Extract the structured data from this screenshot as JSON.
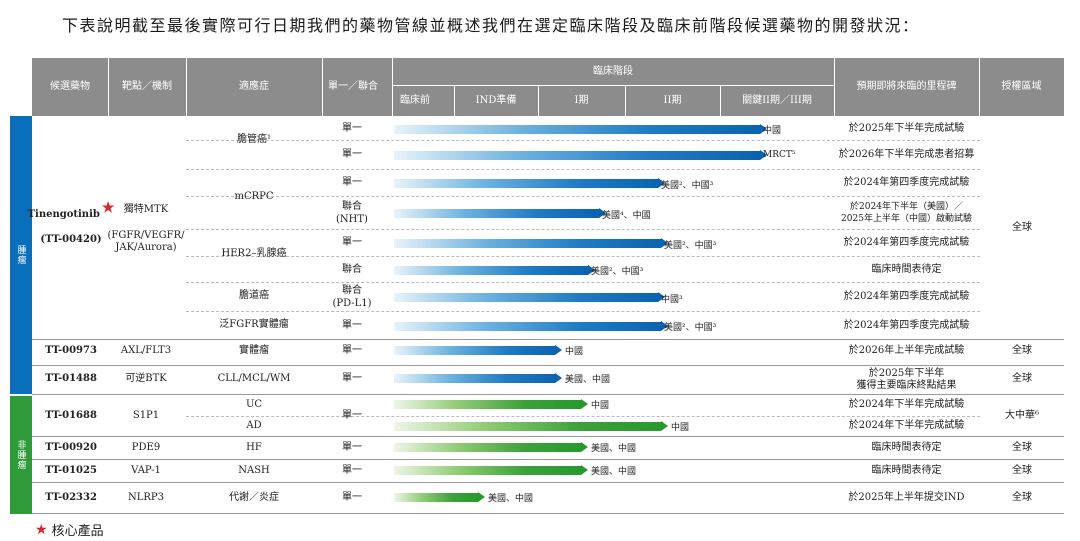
{
  "intro": "下表說明截至最後實際可行日期我們的藥物管線並概述我們在選定臨床階段及臨床前階段候選藥物的開發狀況：",
  "headers": {
    "candidate": "候選藥物",
    "target": "靶點／機制",
    "indication": "適應症",
    "mono_combo": "單一／聯合",
    "clinical_stage": "臨床階段",
    "preclinical": "臨床前",
    "ind": "IND準備",
    "phase1": "I期",
    "phase2": "II期",
    "pivotal": "關鍵II期／III期",
    "milestone": "預期即將來臨的里程碑",
    "rights": "授權區域"
  },
  "sidebar": {
    "oncology": "腫瘤",
    "non_oncology": "非腫瘤"
  },
  "colors": {
    "oncology": "#0a6fba",
    "non_oncology": "#2f9a3a",
    "header": "#8c8c8c",
    "star": "#d9262b"
  },
  "drugs": {
    "tt00420": {
      "name": "Tinengotinib",
      "code": "(TT-00420)",
      "target": "獨特MTK",
      "target_detail": "(FGFR/VEGFR/\nJAK/Aurora)",
      "rights": "全球"
    },
    "tt00973": {
      "code": "TT-00973",
      "target": "AXL/FLT3",
      "indication": "實體瘤",
      "mode": "單一",
      "bar_label": "中國",
      "milestone": "於2026年上半年完成試驗",
      "rights": "全球"
    },
    "tt01488": {
      "code": "TT-01488",
      "target": "可逆BTK",
      "indication": "CLL/MCL/WM",
      "mode": "單一",
      "bar_label": "美國、中國",
      "milestone": "於2025年下半年\n獲得主要臨床終點結果",
      "rights": "全球"
    },
    "tt01688": {
      "code": "TT-01688",
      "target": "S1P1",
      "mode": "單一",
      "rights": "大中華⁶"
    },
    "tt00920": {
      "code": "TT-00920",
      "target": "PDE9",
      "indication": "HF",
      "mode": "單一",
      "bar_label": "美國、中國",
      "milestone": "臨床時間表待定",
      "rights": "全球"
    },
    "tt01025": {
      "code": "TT-01025",
      "target": "VAP-1",
      "indication": "NASH",
      "mode": "單一",
      "bar_label": "美國、中國",
      "milestone": "臨床時間表待定",
      "rights": "全球"
    },
    "tt02332": {
      "code": "TT-02332",
      "target": "NLRP3",
      "indication": "代謝／炎症",
      "mode": "單一",
      "bar_label": "美國、中國",
      "milestone": "於2025年上半年提交IND",
      "rights": "全球"
    }
  },
  "tt00420_rows": [
    {
      "mode": "單一",
      "bar_label": "中國",
      "milestone": "於2025年下半年完成試驗",
      "progress": 1.0
    },
    {
      "mode": "單一",
      "bar_label": "MRCT⁵",
      "milestone": "於2026年下半年完成患者招募",
      "progress": 1.0
    },
    {
      "mode": "單一",
      "bar_label": "美國²、中國³",
      "milestone": "於2024年第四季度完成試驗",
      "progress": 0.72
    },
    {
      "mode": "聯合\n(NHT)",
      "bar_label": "美國⁴、中國",
      "milestone": "於2024年下半年（美國）／\n2025年上半年（中國）啟動試驗",
      "progress": 0.56
    },
    {
      "mode": "單一",
      "bar_label": "美國²、中國³",
      "milestone": "於2024年第四季度完成試驗",
      "progress": 0.73
    },
    {
      "mode": "聯合",
      "bar_label": "美國²、中國³",
      "milestone": "臨床時間表待定",
      "progress": 0.53
    },
    {
      "mode": "聯合\n(PD-L1)",
      "bar_label": "中國³",
      "milestone": "於2024年第四季度完成試驗",
      "progress": 0.72
    },
    {
      "mode": "單一",
      "bar_label": "美國²、中國³",
      "milestone": "於2024年第四季度完成試驗",
      "progress": 0.73
    }
  ],
  "tt00420_indications": [
    "膽管癌¹",
    "mCRPC",
    "HER2–乳腺癌",
    "膽道癌",
    "泛FGFR實體瘤"
  ],
  "tt01688_rows": [
    {
      "indication": "UC",
      "bar_label": "中國",
      "milestone": "於2024年下半年完成試驗",
      "progress": 0.51
    },
    {
      "indication": "AD",
      "bar_label": "中國",
      "milestone": "於2024年下半年完成試驗",
      "progress": 0.73
    }
  ],
  "progress": {
    "tt00973": 0.44,
    "tt01488": 0.44,
    "tt00920": 0.51,
    "tt01025": 0.51,
    "tt02332": 0.23
  },
  "footer": "核心產品"
}
